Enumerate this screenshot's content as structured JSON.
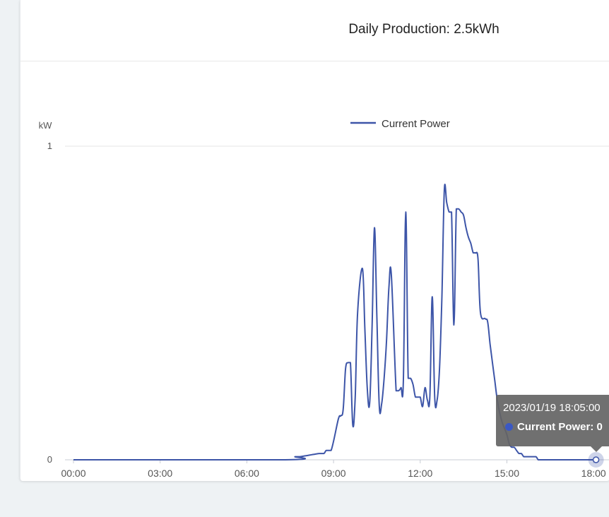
{
  "header": {
    "title": "Daily Production: 2.5kWh"
  },
  "chart_data": {
    "type": "line",
    "ylabel": "kW",
    "ylim": [
      0,
      1
    ],
    "yticks": [
      "0",
      "1"
    ],
    "xticks": [
      "00:00",
      "03:00",
      "06:00",
      "09:00",
      "12:00",
      "15:00",
      "18:00"
    ],
    "grid": true,
    "legend": "top-center",
    "series": [
      {
        "name": "Current Power",
        "color": "#3d55a8",
        "x": [
          "00:00",
          "07:20",
          "07:40",
          "07:50",
          "08:30",
          "08:40",
          "08:45",
          "08:55",
          "09:10",
          "09:15",
          "09:20",
          "09:25",
          "09:30",
          "09:35",
          "09:40",
          "09:45",
          "09:50",
          "10:00",
          "10:05",
          "10:10",
          "10:15",
          "10:20",
          "10:25",
          "10:30",
          "10:35",
          "10:40",
          "10:45",
          "10:50",
          "10:55",
          "11:00",
          "11:10",
          "11:15",
          "11:20",
          "11:25",
          "11:30",
          "11:35",
          "11:40",
          "11:45",
          "11:50",
          "11:55",
          "12:00",
          "12:05",
          "12:10",
          "12:15",
          "12:20",
          "12:25",
          "12:30",
          "12:35",
          "12:40",
          "12:45",
          "12:50",
          "12:55",
          "13:00",
          "13:05",
          "13:10",
          "13:15",
          "13:20",
          "13:25",
          "13:30",
          "13:35",
          "13:40",
          "13:45",
          "13:50",
          "13:55",
          "14:00",
          "14:05",
          "14:15",
          "14:20",
          "14:25",
          "14:30",
          "14:35",
          "14:40",
          "14:45",
          "14:50",
          "14:55",
          "15:00",
          "15:05",
          "15:10",
          "15:15",
          "15:20",
          "15:25",
          "15:30",
          "15:35",
          "15:40",
          "15:45",
          "15:50",
          "16:00",
          "16:05",
          "16:10",
          "16:20",
          "16:30",
          "16:40",
          "16:50",
          "17:00",
          "18:05"
        ],
        "values": [
          0,
          0,
          0.01,
          0.01,
          0.02,
          0.02,
          0.03,
          0.03,
          0.13,
          0.14,
          0.16,
          0.29,
          0.31,
          0.31,
          0.11,
          0.2,
          0.47,
          0.61,
          0.42,
          0.23,
          0.18,
          0.42,
          0.74,
          0.45,
          0.17,
          0.18,
          0.26,
          0.38,
          0.55,
          0.59,
          0.22,
          0.22,
          0.23,
          0.25,
          0.79,
          0.26,
          0.26,
          0.24,
          0.2,
          0.2,
          0.2,
          0.17,
          0.23,
          0.19,
          0.2,
          0.52,
          0.2,
          0.19,
          0.29,
          0.52,
          0.86,
          0.82,
          0.79,
          0.79,
          0.43,
          0.8,
          0.8,
          0.79,
          0.78,
          0.74,
          0.71,
          0.69,
          0.66,
          0.66,
          0.64,
          0.47,
          0.45,
          0.44,
          0.37,
          0.31,
          0.25,
          0.19,
          0.15,
          0.12,
          0.1,
          0.08,
          0.05,
          0.04,
          0.04,
          0.03,
          0.02,
          0.02,
          0.01,
          0.01,
          0.01,
          0.01,
          0.01,
          0,
          0,
          0,
          0,
          0,
          0,
          0,
          0
        ]
      }
    ]
  },
  "tooltip": {
    "date": "2023/01/19 18:05:00",
    "series_label": "Current Power",
    "value": "0"
  }
}
